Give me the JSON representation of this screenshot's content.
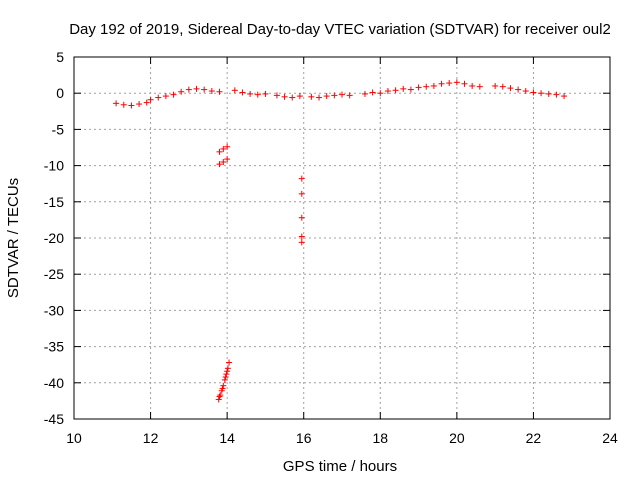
{
  "chart_data": {
    "type": "scatter",
    "title": "Day 192 of 2019, Sidereal Day-to-day VTEC variation (SDTVAR) for receiver oul2",
    "xlabel": "GPS time / hours",
    "ylabel": "SDTVAR / TECUs",
    "xlim": [
      10,
      24
    ],
    "ylim": [
      -45,
      5
    ],
    "xticks": [
      10,
      12,
      14,
      16,
      18,
      20,
      22,
      24
    ],
    "yticks": [
      5,
      0,
      -5,
      -10,
      -15,
      -20,
      -25,
      -30,
      -35,
      -40,
      -45
    ],
    "grid": true,
    "marker": "+",
    "color": "#ff0000",
    "series": [
      {
        "name": "SDTVAR",
        "points": [
          [
            11.1,
            -1.4
          ],
          [
            11.3,
            -1.6
          ],
          [
            11.5,
            -1.7
          ],
          [
            11.7,
            -1.5
          ],
          [
            11.9,
            -1.3
          ],
          [
            12.0,
            -0.9
          ],
          [
            12.2,
            -0.6
          ],
          [
            12.4,
            -0.4
          ],
          [
            12.6,
            -0.2
          ],
          [
            12.8,
            0.2
          ],
          [
            13.0,
            0.5
          ],
          [
            13.2,
            0.6
          ],
          [
            13.4,
            0.5
          ],
          [
            13.6,
            0.3
          ],
          [
            13.8,
            0.2
          ],
          [
            14.2,
            0.4
          ],
          [
            14.4,
            0.1
          ],
          [
            14.6,
            -0.1
          ],
          [
            14.8,
            -0.2
          ],
          [
            15.0,
            -0.1
          ],
          [
            15.3,
            -0.3
          ],
          [
            15.5,
            -0.5
          ],
          [
            15.7,
            -0.6
          ],
          [
            15.9,
            -0.4
          ],
          [
            16.2,
            -0.5
          ],
          [
            16.4,
            -0.6
          ],
          [
            16.6,
            -0.4
          ],
          [
            16.8,
            -0.3
          ],
          [
            17.0,
            -0.2
          ],
          [
            17.2,
            -0.3
          ],
          [
            17.6,
            -0.1
          ],
          [
            17.8,
            0.1
          ],
          [
            18.0,
            0.0
          ],
          [
            18.2,
            0.3
          ],
          [
            18.4,
            0.4
          ],
          [
            18.6,
            0.6
          ],
          [
            18.8,
            0.5
          ],
          [
            19.0,
            0.8
          ],
          [
            19.2,
            0.9
          ],
          [
            19.4,
            1.0
          ],
          [
            19.6,
            1.3
          ],
          [
            19.8,
            1.4
          ],
          [
            20.0,
            1.5
          ],
          [
            20.2,
            1.3
          ],
          [
            20.4,
            1.0
          ],
          [
            20.6,
            0.9
          ],
          [
            21.0,
            1.0
          ],
          [
            21.2,
            0.9
          ],
          [
            21.4,
            0.7
          ],
          [
            21.6,
            0.5
          ],
          [
            21.8,
            0.3
          ],
          [
            22.0,
            0.1
          ],
          [
            22.2,
            0.0
          ],
          [
            22.4,
            -0.1
          ],
          [
            22.6,
            -0.2
          ],
          [
            22.8,
            -0.4
          ],
          [
            13.8,
            -8.1
          ],
          [
            13.9,
            -7.7
          ],
          [
            14.0,
            -7.4
          ],
          [
            13.8,
            -9.8
          ],
          [
            13.9,
            -9.5
          ],
          [
            14.0,
            -9.1
          ],
          [
            15.95,
            -11.8
          ],
          [
            15.95,
            -13.9
          ],
          [
            15.95,
            -17.2
          ],
          [
            15.95,
            -19.8
          ],
          [
            15.95,
            -20.6
          ],
          [
            13.78,
            -42.3
          ],
          [
            13.82,
            -41.7
          ],
          [
            13.86,
            -41.1
          ],
          [
            13.9,
            -40.4
          ],
          [
            13.94,
            -39.6
          ],
          [
            13.98,
            -38.8
          ],
          [
            14.02,
            -38.0
          ],
          [
            14.05,
            -37.2
          ],
          [
            13.8,
            -41.9
          ],
          [
            13.88,
            -40.8
          ],
          [
            13.96,
            -39.2
          ],
          [
            14.0,
            -38.4
          ]
        ]
      }
    ]
  }
}
